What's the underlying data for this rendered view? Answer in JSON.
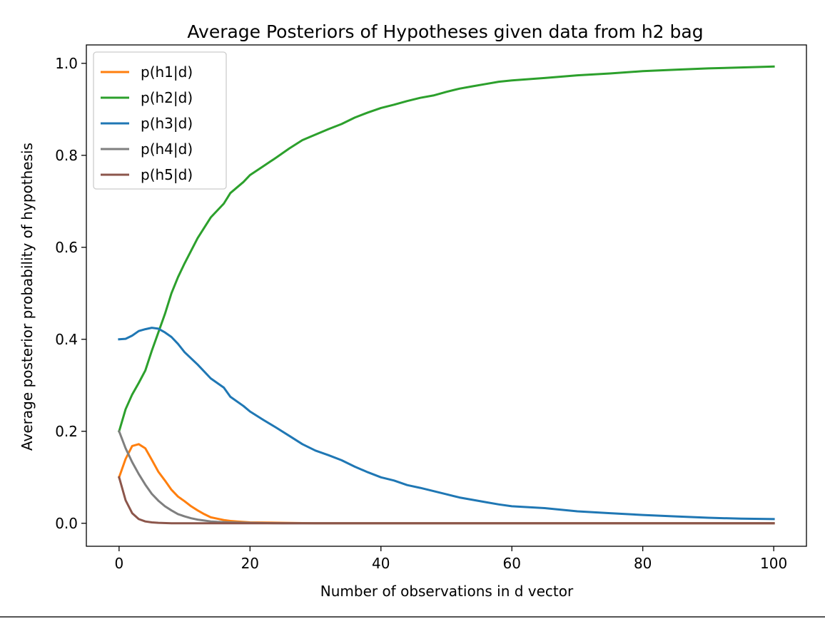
{
  "chart_data": {
    "type": "line",
    "title": "Average Posteriors of Hypotheses given data from h2 bag",
    "xlabel": "Number of observations in d vector",
    "ylabel": "Average posterior probability of hypothesis",
    "xlim": [
      -5,
      105
    ],
    "ylim": [
      -0.05,
      1.04
    ],
    "xticks": [
      0,
      20,
      40,
      60,
      80,
      100
    ],
    "xtick_labels": [
      "0",
      "20",
      "40",
      "60",
      "80",
      "100"
    ],
    "yticks": [
      0.0,
      0.2,
      0.4,
      0.6,
      0.8,
      1.0
    ],
    "ytick_labels": [
      "0.0",
      "0.2",
      "0.4",
      "0.6",
      "0.8",
      "1.0"
    ],
    "grid": false,
    "legend_position": "upper-left",
    "series": [
      {
        "name": "p(h1|d)",
        "color": "#ff7f0e",
        "x": [
          0,
          1,
          2,
          3,
          4,
          5,
          6,
          7,
          8,
          9,
          10,
          11,
          12,
          13,
          14,
          15,
          16,
          17,
          18,
          20,
          25,
          30,
          40,
          50,
          60,
          70,
          80,
          90,
          100
        ],
        "y": [
          0.1,
          0.14,
          0.168,
          0.172,
          0.163,
          0.138,
          0.112,
          0.093,
          0.073,
          0.058,
          0.048,
          0.037,
          0.028,
          0.02,
          0.013,
          0.01,
          0.007,
          0.005,
          0.004,
          0.002,
          0.001,
          0.0,
          0.0,
          0.0,
          0.0,
          0.0,
          0.0,
          0.0,
          0.0
        ]
      },
      {
        "name": "p(h2|d)",
        "color": "#2ca02c",
        "x": [
          0,
          1,
          2,
          3,
          4,
          5,
          6,
          7,
          8,
          9,
          10,
          12,
          14,
          16,
          17,
          19,
          20,
          22,
          24,
          26,
          28,
          30,
          32,
          34,
          36,
          38,
          40,
          42,
          44,
          46,
          48,
          50,
          52,
          54,
          56,
          58,
          60,
          65,
          70,
          75,
          80,
          85,
          90,
          95,
          100
        ],
        "y": [
          0.2,
          0.248,
          0.28,
          0.305,
          0.332,
          0.375,
          0.415,
          0.455,
          0.5,
          0.535,
          0.565,
          0.62,
          0.665,
          0.695,
          0.718,
          0.742,
          0.757,
          0.776,
          0.795,
          0.815,
          0.833,
          0.845,
          0.857,
          0.868,
          0.882,
          0.893,
          0.903,
          0.91,
          0.918,
          0.925,
          0.93,
          0.938,
          0.945,
          0.95,
          0.955,
          0.96,
          0.963,
          0.968,
          0.974,
          0.978,
          0.983,
          0.986,
          0.989,
          0.991,
          0.993
        ]
      },
      {
        "name": "p(h3|d)",
        "color": "#1f77b4",
        "x": [
          0,
          1,
          2,
          3,
          4,
          5,
          6,
          7,
          8,
          9,
          10,
          12,
          14,
          16,
          17,
          19,
          20,
          22,
          24,
          26,
          28,
          30,
          32,
          34,
          36,
          38,
          40,
          42,
          44,
          46,
          48,
          50,
          52,
          54,
          56,
          58,
          60,
          65,
          70,
          75,
          80,
          85,
          90,
          95,
          100
        ],
        "y": [
          0.4,
          0.401,
          0.408,
          0.418,
          0.422,
          0.425,
          0.423,
          0.415,
          0.405,
          0.39,
          0.372,
          0.345,
          0.315,
          0.295,
          0.275,
          0.255,
          0.243,
          0.225,
          0.208,
          0.19,
          0.172,
          0.158,
          0.148,
          0.137,
          0.123,
          0.111,
          0.1,
          0.093,
          0.083,
          0.077,
          0.07,
          0.063,
          0.056,
          0.051,
          0.046,
          0.041,
          0.037,
          0.033,
          0.026,
          0.022,
          0.018,
          0.015,
          0.012,
          0.01,
          0.009
        ]
      },
      {
        "name": "p(h4|d)",
        "color": "#7f7f7f",
        "x": [
          0,
          1,
          2,
          3,
          4,
          5,
          6,
          7,
          8,
          9,
          10,
          11,
          12,
          13,
          14,
          15,
          17,
          20,
          25,
          30,
          40,
          50,
          60,
          70,
          80,
          90,
          100
        ],
        "y": [
          0.2,
          0.163,
          0.133,
          0.107,
          0.084,
          0.064,
          0.049,
          0.037,
          0.028,
          0.02,
          0.015,
          0.011,
          0.008,
          0.006,
          0.004,
          0.003,
          0.002,
          0.001,
          0.0,
          0.0,
          0.0,
          0.0,
          0.0,
          0.0,
          0.0,
          0.0,
          0.0
        ]
      },
      {
        "name": "p(h5|d)",
        "color": "#8c564b",
        "x": [
          0,
          1,
          2,
          3,
          4,
          5,
          6,
          8,
          10,
          15,
          20,
          30,
          40,
          50,
          60,
          70,
          80,
          90,
          100
        ],
        "y": [
          0.1,
          0.05,
          0.022,
          0.009,
          0.004,
          0.002,
          0.001,
          0.0,
          0.0,
          0.0,
          0.0,
          0.0,
          0.0,
          0.0,
          0.0,
          0.0,
          0.0,
          0.0,
          0.0
        ]
      }
    ]
  }
}
